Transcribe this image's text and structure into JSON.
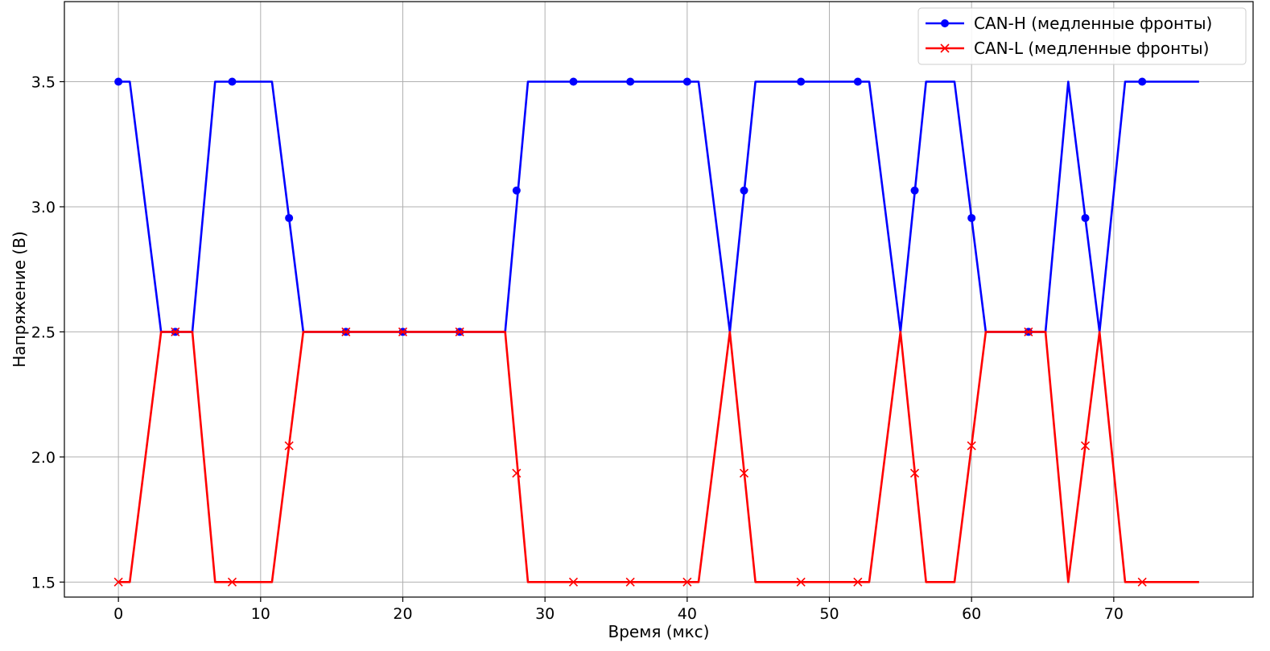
{
  "chart_data": {
    "type": "line",
    "title": "",
    "xlabel": "Время (мкс)",
    "ylabel": "Напряжение (В)",
    "xlim": [
      -3.8,
      79.8
    ],
    "ylim": [
      1.44,
      3.82
    ],
    "xticks": [
      0,
      10,
      20,
      30,
      40,
      50,
      60,
      70
    ],
    "yticks": [
      1.5,
      2.0,
      2.5,
      3.0,
      3.5
    ],
    "ytick_labels": [
      "1.5",
      "2.0",
      "2.5",
      "3.0",
      "3.5"
    ],
    "grid": true,
    "legend_position": "top-right",
    "series": [
      {
        "name": "CAN-H (медленные фронты)",
        "color": "#0000ff",
        "marker": "circle",
        "line": [
          [
            0,
            3.5
          ],
          [
            0.8,
            3.5
          ],
          [
            3,
            2.5
          ],
          [
            5.2,
            2.5
          ],
          [
            6.8,
            3.5
          ],
          [
            10.8,
            3.5
          ],
          [
            13,
            2.5
          ],
          [
            27.2,
            2.5
          ],
          [
            28.8,
            3.5
          ],
          [
            40.8,
            3.5
          ],
          [
            43,
            2.5
          ],
          [
            44.8,
            3.5
          ],
          [
            52.8,
            3.5
          ],
          [
            55,
            2.5
          ],
          [
            56.8,
            3.5
          ],
          [
            58.8,
            3.5
          ],
          [
            61,
            2.5
          ],
          [
            65.2,
            2.5
          ],
          [
            66.8,
            3.5
          ],
          [
            69,
            2.5
          ],
          [
            70.8,
            3.5
          ],
          [
            76,
            3.5
          ]
        ],
        "markers": [
          [
            0,
            3.5
          ],
          [
            4,
            2.5
          ],
          [
            8,
            3.5
          ],
          [
            12,
            2.955
          ],
          [
            16,
            2.5
          ],
          [
            20,
            2.5
          ],
          [
            24,
            2.5
          ],
          [
            28,
            3.065
          ],
          [
            32,
            3.5
          ],
          [
            36,
            3.5
          ],
          [
            40,
            3.5
          ],
          [
            44,
            3.065
          ],
          [
            48,
            3.5
          ],
          [
            52,
            3.5
          ],
          [
            56,
            3.065
          ],
          [
            60,
            2.955
          ],
          [
            64,
            2.5
          ],
          [
            68,
            2.955
          ],
          [
            72,
            3.5
          ]
        ]
      },
      {
        "name": "CAN-L (медленные фронты)",
        "color": "#ff0000",
        "marker": "x",
        "line": [
          [
            0,
            1.5
          ],
          [
            0.8,
            1.5
          ],
          [
            3,
            2.5
          ],
          [
            5.2,
            2.5
          ],
          [
            6.8,
            1.5
          ],
          [
            10.8,
            1.5
          ],
          [
            13,
            2.5
          ],
          [
            27.2,
            2.5
          ],
          [
            28.8,
            1.5
          ],
          [
            40.8,
            1.5
          ],
          [
            43,
            2.5
          ],
          [
            44.8,
            1.5
          ],
          [
            52.8,
            1.5
          ],
          [
            55,
            2.5
          ],
          [
            56.8,
            1.5
          ],
          [
            58.8,
            1.5
          ],
          [
            61,
            2.5
          ],
          [
            65.2,
            2.5
          ],
          [
            66.8,
            1.5
          ],
          [
            69,
            2.5
          ],
          [
            70.8,
            1.5
          ],
          [
            76,
            1.5
          ]
        ],
        "markers": [
          [
            0,
            1.5
          ],
          [
            4,
            2.5
          ],
          [
            8,
            1.5
          ],
          [
            12,
            2.045
          ],
          [
            16,
            2.5
          ],
          [
            20,
            2.5
          ],
          [
            24,
            2.5
          ],
          [
            28,
            1.935
          ],
          [
            32,
            1.5
          ],
          [
            36,
            1.5
          ],
          [
            40,
            1.5
          ],
          [
            44,
            1.935
          ],
          [
            48,
            1.5
          ],
          [
            52,
            1.5
          ],
          [
            56,
            1.935
          ],
          [
            60,
            2.045
          ],
          [
            64,
            2.5
          ],
          [
            68,
            2.045
          ],
          [
            72,
            1.5
          ]
        ]
      }
    ]
  }
}
